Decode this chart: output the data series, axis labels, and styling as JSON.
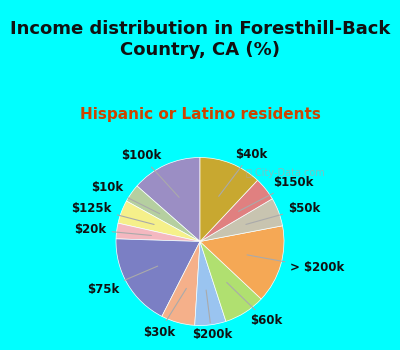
{
  "title": "Income distribution in Foresthill-Back\nCountry, CA (%)",
  "subtitle": "Hispanic or Latino residents",
  "background_color": "#00ffff",
  "chart_bg_start": "#e8f5e9",
  "chart_bg_end": "#c8e6c9",
  "watermark": "City-Data.com",
  "labels": [
    "$100k",
    "$10k",
    "$125k",
    "$20k",
    "$75k",
    "$30k",
    "$200k",
    "$60k",
    "> $200k",
    "$50k",
    "$150k",
    "$40k"
  ],
  "values": [
    13.5,
    3.5,
    4.5,
    3.0,
    18.0,
    6.5,
    6.0,
    8.0,
    15.0,
    5.5,
    4.5,
    12.0
  ],
  "colors": [
    "#9b8ec4",
    "#b5cfa0",
    "#f5f08a",
    "#f4b8c0",
    "#7b7fc4",
    "#f5b08a",
    "#9ac4f0",
    "#b0e070",
    "#f5a855",
    "#c8c4b0",
    "#e08080",
    "#c8a830"
  ],
  "label_fontsize": 8.5,
  "title_fontsize": 13,
  "subtitle_fontsize": 11,
  "title_color": "#111111",
  "subtitle_color": "#cc4400"
}
